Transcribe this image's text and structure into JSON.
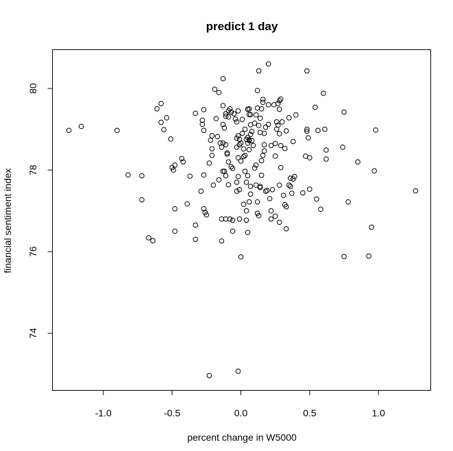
{
  "chart_data": {
    "type": "scatter",
    "title": "predict 1 day",
    "xlabel": "percent change in W5000",
    "ylabel": "financial sentiment index",
    "xlim": [
      -1.37,
      1.38
    ],
    "ylim": [
      72.6,
      80.95
    ],
    "x_ticks": [
      -1.0,
      -0.5,
      0.0,
      0.5,
      1.0
    ],
    "x_tick_labels": [
      "-1.0",
      "-0.5",
      "0.0",
      "0.5",
      "1.0"
    ],
    "y_ticks": [
      74,
      76,
      78,
      80
    ],
    "y_tick_labels": [
      "74",
      "76",
      "78",
      "80"
    ],
    "grid": false,
    "legend": "none",
    "points": [
      [
        -1.25,
        78.97
      ],
      [
        -1.16,
        79.07
      ],
      [
        -0.9,
        78.97
      ],
      [
        -0.82,
        77.88
      ],
      [
        -0.72,
        77.86
      ],
      [
        -0.72,
        77.27
      ],
      [
        -0.67,
        76.34
      ],
      [
        -0.64,
        76.27
      ],
      [
        -0.61,
        79.5
      ],
      [
        -0.58,
        79.63
      ],
      [
        -0.58,
        79.17
      ],
      [
        -0.56,
        78.99
      ],
      [
        -0.54,
        79.28
      ],
      [
        -0.51,
        78.76
      ],
      [
        -0.5,
        78.06
      ],
      [
        -0.49,
        78.0
      ],
      [
        -0.48,
        78.12
      ],
      [
        -0.48,
        77.05
      ],
      [
        -0.48,
        76.5
      ],
      [
        -0.43,
        78.28
      ],
      [
        -0.42,
        78.2
      ],
      [
        -0.39,
        77.17
      ],
      [
        -0.37,
        77.85
      ],
      [
        -0.33,
        76.3
      ],
      [
        -0.33,
        76.65
      ],
      [
        -0.33,
        79.39
      ],
      [
        -0.29,
        77.48
      ],
      [
        -0.28,
        79.12
      ],
      [
        -0.28,
        79.22
      ],
      [
        -0.27,
        78.97
      ],
      [
        -0.27,
        79.48
      ],
      [
        -0.27,
        77.88
      ],
      [
        -0.27,
        77.05
      ],
      [
        -0.26,
        76.96
      ],
      [
        -0.25,
        76.9
      ],
      [
        -0.23,
        78.17
      ],
      [
        -0.22,
        78.73
      ],
      [
        -0.21,
        78.84
      ],
      [
        -0.21,
        78.36
      ],
      [
        -0.21,
        78.52
      ],
      [
        -0.2,
        77.63
      ],
      [
        -0.19,
        79.98
      ],
      [
        -0.18,
        79.26
      ],
      [
        -0.17,
        78.82
      ],
      [
        -0.16,
        79.9
      ],
      [
        -0.16,
        77.76
      ],
      [
        -0.15,
        78.66
      ],
      [
        -0.14,
        76.8
      ],
      [
        -0.14,
        76.26
      ],
      [
        -0.14,
        78.56
      ],
      [
        -0.13,
        80.24
      ],
      [
        -0.13,
        79.58
      ],
      [
        -0.13,
        78.66
      ],
      [
        -0.13,
        77.97
      ],
      [
        -0.13,
        79.12
      ],
      [
        -0.12,
        79.03
      ],
      [
        -0.12,
        77.97
      ],
      [
        -0.11,
        79.38
      ],
      [
        -0.11,
        79.32
      ],
      [
        -0.11,
        78.62
      ],
      [
        -0.11,
        77.86
      ],
      [
        -0.11,
        76.8
      ],
      [
        -0.1,
        78.42
      ],
      [
        -0.1,
        78.39
      ],
      [
        -0.09,
        78.2
      ],
      [
        -0.09,
        77.64
      ],
      [
        -0.09,
        79.3
      ],
      [
        -0.09,
        79.45
      ],
      [
        -0.08,
        79.5
      ],
      [
        -0.08,
        76.8
      ],
      [
        -0.07,
        78.08
      ],
      [
        -0.07,
        79.42
      ],
      [
        -0.06,
        78.04
      ],
      [
        -0.06,
        76.5
      ],
      [
        -0.06,
        76.77
      ],
      [
        -0.05,
        79.38
      ],
      [
        -0.04,
        79.25
      ],
      [
        -0.03,
        79.18
      ],
      [
        -0.03,
        78.56
      ],
      [
        -0.03,
        78.78
      ],
      [
        -0.03,
        77.7
      ],
      [
        -0.03,
        77.48
      ],
      [
        -0.02,
        78.84
      ],
      [
        -0.02,
        78.3
      ],
      [
        -0.02,
        79.45
      ],
      [
        -0.02,
        77.84
      ],
      [
        -0.01,
        78.75
      ],
      [
        -0.01,
        78.62
      ],
      [
        -0.01,
        77.52
      ],
      [
        -0.01,
        76.8
      ],
      [
        0.0,
        75.87
      ],
      [
        0.0,
        78.66
      ],
      [
        0.0,
        78.22
      ],
      [
        0.01,
        79.24
      ],
      [
        0.01,
        78.9
      ],
      [
        0.02,
        78.52
      ],
      [
        0.02,
        78.33
      ],
      [
        0.02,
        77.16
      ],
      [
        0.03,
        79.0
      ],
      [
        0.03,
        78.36
      ],
      [
        0.03,
        77.97
      ],
      [
        0.04,
        77.7
      ],
      [
        0.04,
        77.0
      ],
      [
        0.04,
        76.77
      ],
      [
        0.04,
        78.75
      ],
      [
        0.05,
        79.49
      ],
      [
        0.05,
        79.49
      ],
      [
        0.05,
        78.8
      ],
      [
        0.05,
        78.66
      ],
      [
        0.05,
        77.86
      ],
      [
        0.05,
        76.47
      ],
      [
        0.06,
        79.36
      ],
      [
        0.06,
        79.5
      ],
      [
        0.06,
        78.5
      ],
      [
        0.06,
        78.72
      ],
      [
        0.06,
        78.74
      ],
      [
        0.06,
        77.22
      ],
      [
        0.07,
        79.11
      ],
      [
        0.07,
        79.36
      ],
      [
        0.07,
        78.87
      ],
      [
        0.07,
        77.6
      ],
      [
        0.07,
        77.41
      ],
      [
        0.08,
        78.95
      ],
      [
        0.08,
        78.72
      ],
      [
        0.09,
        78.6
      ],
      [
        0.1,
        79.15
      ],
      [
        0.1,
        78.05
      ],
      [
        0.11,
        79.35
      ],
      [
        0.11,
        78.12
      ],
      [
        0.11,
        77.63
      ],
      [
        0.12,
        77.22
      ],
      [
        0.12,
        79.95
      ],
      [
        0.12,
        79.52
      ],
      [
        0.12,
        76.94
      ],
      [
        0.13,
        80.43
      ],
      [
        0.13,
        79.09
      ],
      [
        0.13,
        76.88
      ],
      [
        0.14,
        79.27
      ],
      [
        0.14,
        78.92
      ],
      [
        0.14,
        77.6
      ],
      [
        0.14,
        77.57
      ],
      [
        0.15,
        79.5
      ],
      [
        0.15,
        78.23
      ],
      [
        0.15,
        77.87
      ],
      [
        0.16,
        79.73
      ],
      [
        0.16,
        78.36
      ],
      [
        0.16,
        79.66
      ],
      [
        0.17,
        78.9
      ],
      [
        0.17,
        78.47
      ],
      [
        0.17,
        78.62
      ],
      [
        0.18,
        79.05
      ],
      [
        0.18,
        77.48
      ],
      [
        0.19,
        77.5
      ],
      [
        0.2,
        80.6
      ],
      [
        0.2,
        79.12
      ],
      [
        0.2,
        79.6
      ],
      [
        0.21,
        77.3
      ],
      [
        0.22,
        78.6
      ],
      [
        0.22,
        77.0
      ],
      [
        0.22,
        76.8
      ],
      [
        0.23,
        77.52
      ],
      [
        0.24,
        79.6
      ],
      [
        0.25,
        78.65
      ],
      [
        0.25,
        78.34
      ],
      [
        0.25,
        76.87
      ],
      [
        0.26,
        79.18
      ],
      [
        0.26,
        79.0
      ],
      [
        0.27,
        79.63
      ],
      [
        0.27,
        79.1
      ],
      [
        0.28,
        79.7
      ],
      [
        0.28,
        79.49
      ],
      [
        0.28,
        78.89
      ],
      [
        0.28,
        77.63
      ],
      [
        0.28,
        76.72
      ],
      [
        0.29,
        78.6
      ],
      [
        0.29,
        79.74
      ],
      [
        0.29,
        78.06
      ],
      [
        0.3,
        79.18
      ],
      [
        0.31,
        77.38
      ],
      [
        0.32,
        77.15
      ],
      [
        0.32,
        78.53
      ],
      [
        0.33,
        77.1
      ],
      [
        0.33,
        76.56
      ],
      [
        0.33,
        78.96
      ],
      [
        0.35,
        77.63
      ],
      [
        0.35,
        79.28
      ],
      [
        0.36,
        77.6
      ],
      [
        0.36,
        77.8
      ],
      [
        0.37,
        77.43
      ],
      [
        0.38,
        77.78
      ],
      [
        0.38,
        78.7
      ],
      [
        0.39,
        77.84
      ],
      [
        0.4,
        79.35
      ],
      [
        0.45,
        77.44
      ],
      [
        0.47,
        78.34
      ],
      [
        0.48,
        80.43
      ],
      [
        0.48,
        79.0
      ],
      [
        0.48,
        78.95
      ],
      [
        0.49,
        78.79
      ],
      [
        0.5,
        78.3
      ],
      [
        0.5,
        77.53
      ],
      [
        0.54,
        79.54
      ],
      [
        0.55,
        77.29
      ],
      [
        0.56,
        78.97
      ],
      [
        0.58,
        77.04
      ],
      [
        0.6,
        79.88
      ],
      [
        0.61,
        79.0
      ],
      [
        0.62,
        78.49
      ],
      [
        0.62,
        78.27
      ],
      [
        0.74,
        78.56
      ],
      [
        0.75,
        79.42
      ],
      [
        0.75,
        75.88
      ],
      [
        0.78,
        77.22
      ],
      [
        0.85,
        78.2
      ],
      [
        0.93,
        75.89
      ],
      [
        0.95,
        76.6
      ],
      [
        0.97,
        77.98
      ],
      [
        0.98,
        78.98
      ],
      [
        1.27,
        77.49
      ],
      [
        -0.23,
        72.96
      ],
      [
        -0.02,
        73.07
      ]
    ]
  }
}
